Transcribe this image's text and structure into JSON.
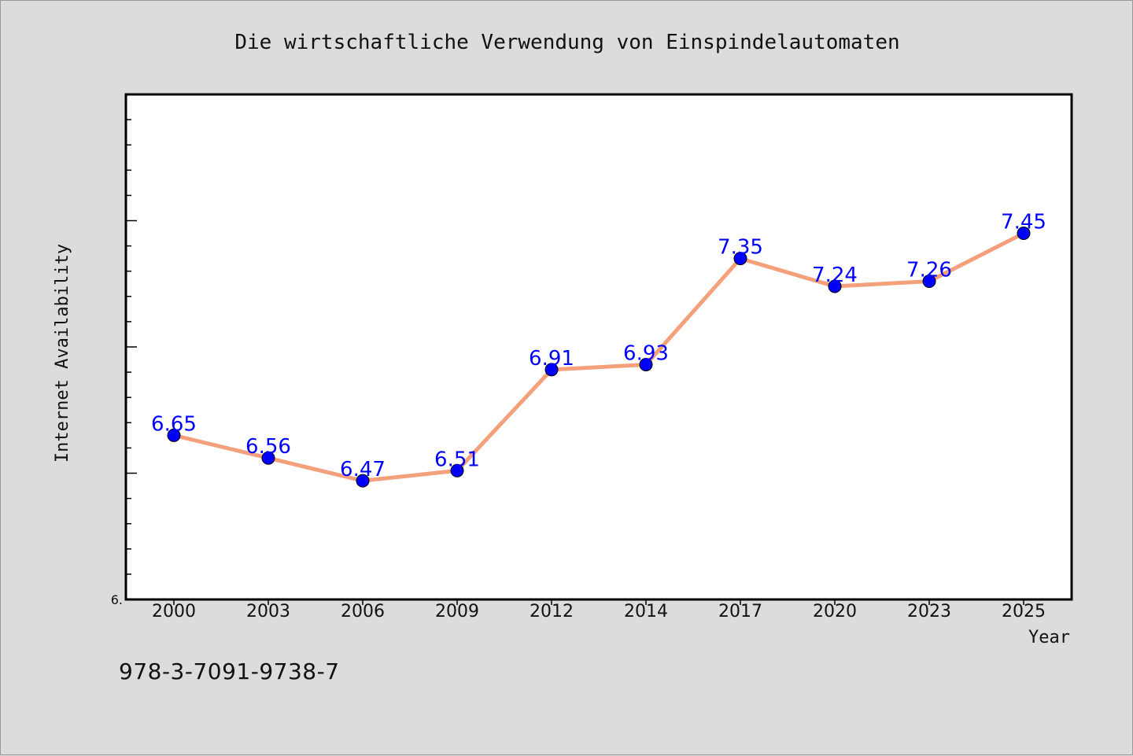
{
  "chart_data": {
    "type": "line",
    "title": "Die wirtschaftliche Verwendung von Einspindelautomaten",
    "xlabel": "Year",
    "ylabel": "Internet Availability",
    "categories": [
      "2000",
      "2003",
      "2006",
      "2009",
      "2012",
      "2014",
      "2017",
      "2020",
      "2023",
      "2025"
    ],
    "series": [
      {
        "values": [
          6.65,
          6.56,
          6.47,
          6.51,
          6.91,
          6.93,
          7.35,
          7.24,
          7.26,
          7.45
        ],
        "data_labels": [
          "6.65",
          "6.56",
          "6.47",
          "6.51",
          "6.91",
          "6.93",
          "7.35",
          "7.24",
          "7.26",
          "7.45"
        ],
        "line_color": "#f4a07a",
        "marker_color": "#0000ff"
      }
    ],
    "ylim": [
      6.0,
      8.0
    ],
    "y_tick_labels": [
      {
        "value": 6.0,
        "label": "6."
      }
    ],
    "grid": false,
    "legend": "none"
  },
  "footer": {
    "isbn": "978-3-7091-9738-7"
  },
  "colors": {
    "background": "#dcdcdc",
    "plot_background": "#ffffff",
    "axis": "#000000"
  }
}
